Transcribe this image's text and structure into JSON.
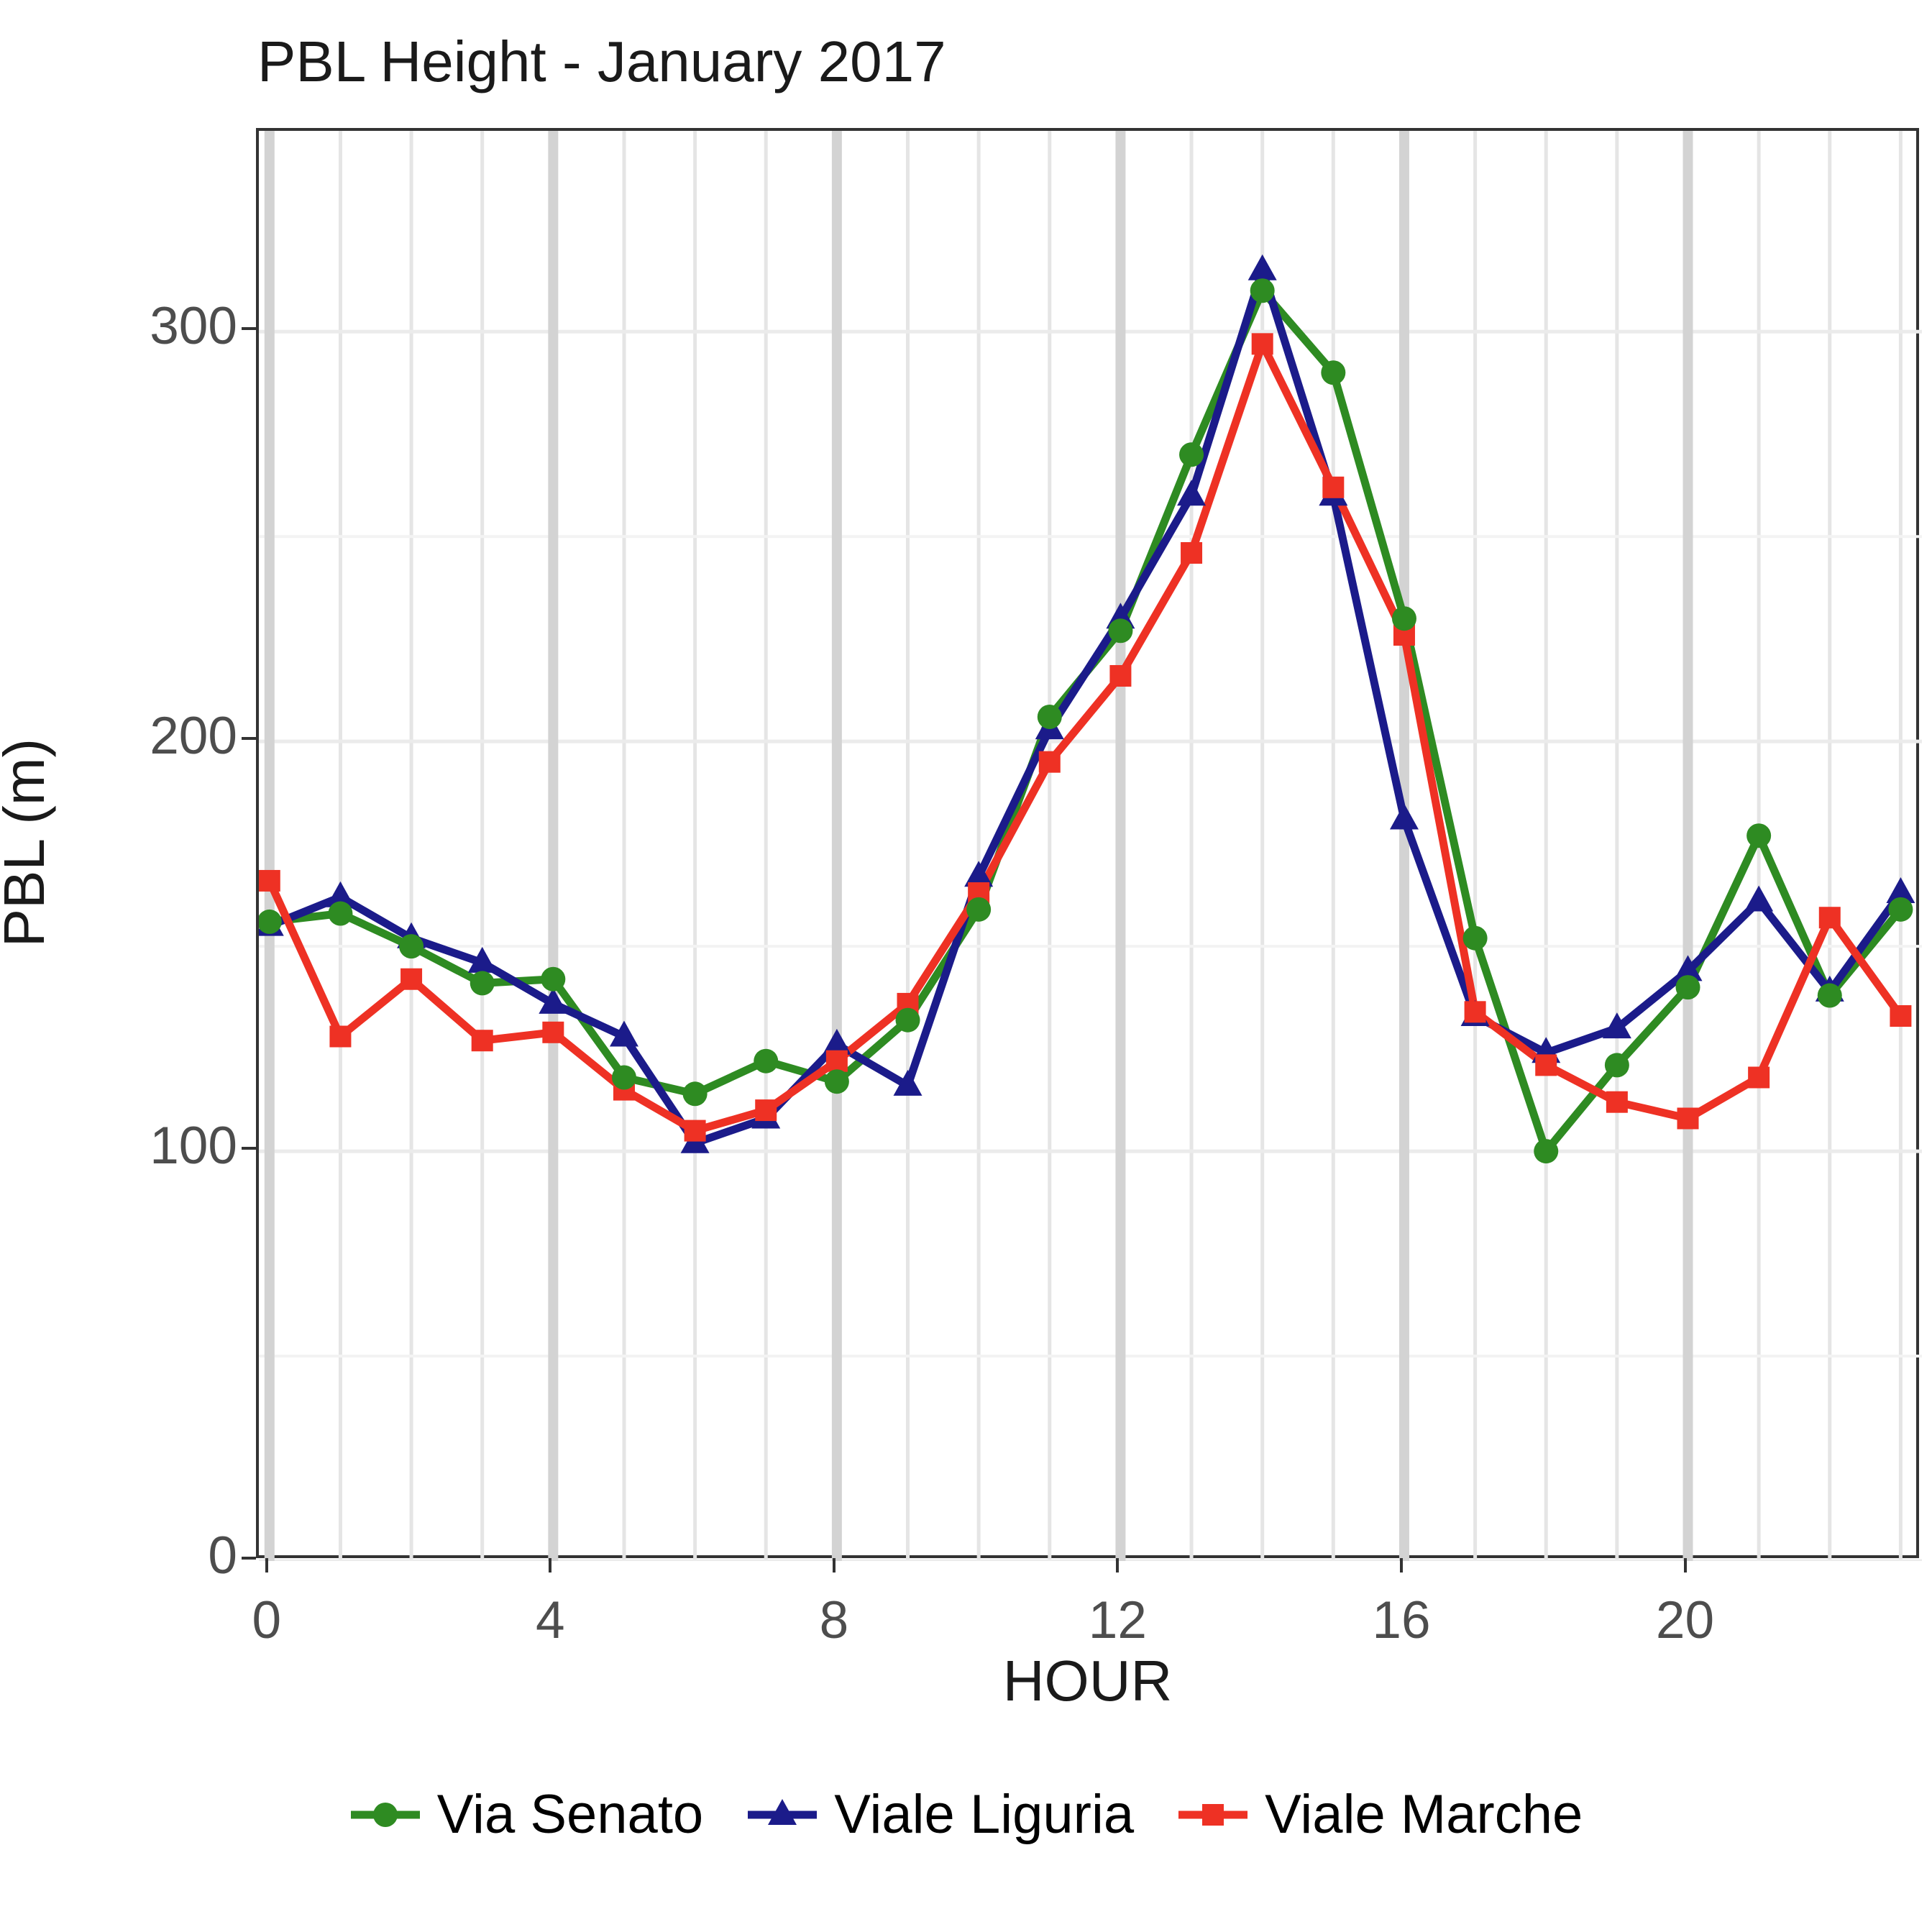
{
  "chart_data": {
    "type": "line",
    "title": "PBL Height - January 2017",
    "xlabel": "HOUR",
    "ylabel": "PBL (m)",
    "x": [
      0,
      1,
      2,
      3,
      4,
      5,
      6,
      7,
      8,
      9,
      10,
      11,
      12,
      13,
      14,
      15,
      16,
      17,
      18,
      19,
      20,
      21,
      22,
      23
    ],
    "series": [
      {
        "name": "Via Senato",
        "color": "#2E8B22",
        "marker": "circle",
        "values": [
          156,
          158,
          150,
          141,
          142,
          118,
          114,
          122,
          117,
          132,
          159,
          206,
          227,
          270,
          310,
          290,
          230,
          152,
          100,
          121,
          140,
          177,
          138,
          159
        ]
      },
      {
        "name": "Viale Liguria",
        "color": "#1B1B8A",
        "marker": "triangle",
        "values": [
          155,
          162,
          152,
          146,
          136,
          128,
          102,
          108,
          126,
          116,
          167,
          203,
          230,
          260,
          315,
          260,
          181,
          133,
          124,
          130,
          144,
          161,
          139,
          163
        ]
      },
      {
        "name": "Viale Marche",
        "color": "#EE3124",
        "marker": "square",
        "values": [
          166,
          128,
          142,
          127,
          129,
          115,
          105,
          110,
          122,
          136,
          163,
          195,
          216,
          246,
          297,
          262,
          226,
          134,
          121,
          112,
          108,
          118,
          157,
          133
        ]
      }
    ],
    "x_ticks": [
      0,
      4,
      8,
      12,
      16,
      20
    ],
    "y_ticks": [
      0,
      100,
      200,
      300
    ],
    "y_minor": [
      50,
      150,
      250
    ],
    "x_minor_step": 1,
    "xlim": [
      -0.15,
      23.3
    ],
    "ylim": [
      0,
      349
    ],
    "grid": "major+minor",
    "legend_position": "bottom",
    "axis_text_color": "#4D4D4D",
    "panel_border_color": "#333333"
  }
}
